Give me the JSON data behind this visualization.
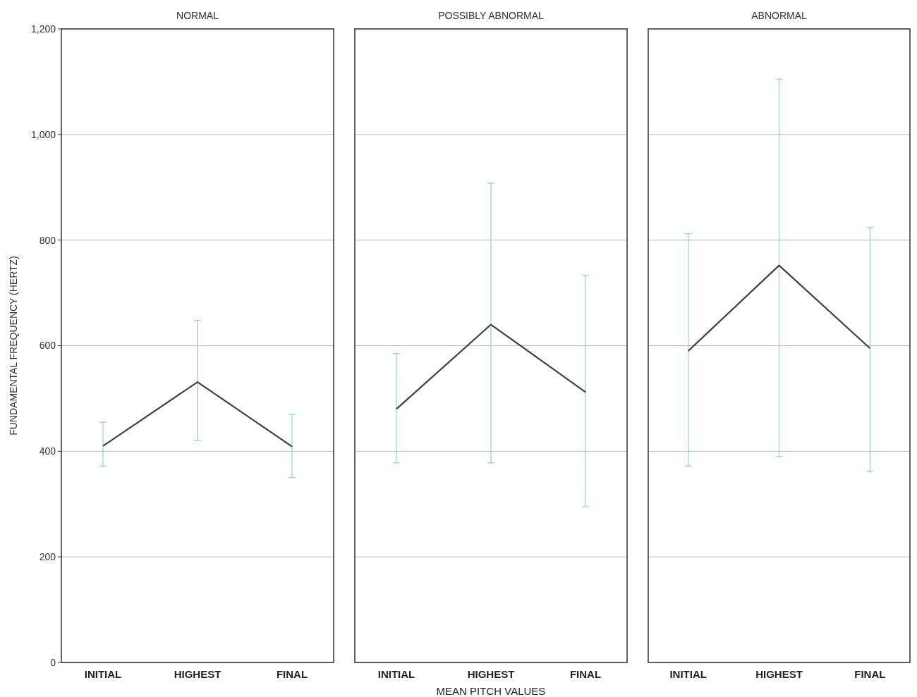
{
  "chart_data": [
    {
      "type": "line",
      "title": "NORMAL",
      "ylabel": "FUNDAMENTAL FREQUENCY (HERTZ)",
      "categories": [
        "INITIAL",
        "HIGHEST",
        "FINAL"
      ],
      "series": [
        {
          "color": "#404040",
          "values": [
            410,
            531,
            409
          ],
          "errors": [
            [
              372,
              455
            ],
            [
              421,
              648
            ],
            [
              350,
              470
            ]
          ]
        }
      ],
      "ylim": [
        0,
        1200
      ],
      "yticks": [
        0,
        200,
        400,
        600,
        800,
        {
          "value": 1000,
          "label": "1,000"
        },
        {
          "value": 1200,
          "label": "1,200"
        }
      ],
      "grid": "y"
    },
    {
      "type": "line",
      "title": "POSSIBLY ABNORMAL",
      "xlabel": "MEAN PITCH VALUES",
      "categories": [
        "INITIAL",
        "HIGHEST",
        "FINAL"
      ],
      "series": [
        {
          "color": "#404040",
          "values": [
            480,
            640,
            512
          ],
          "errors": [
            [
              378,
              585
            ],
            [
              378,
              908
            ],
            [
              295,
              733
            ]
          ]
        }
      ],
      "ylim": [
        0,
        1200
      ],
      "yticks": [
        0,
        200,
        400,
        600,
        800,
        1000,
        1200
      ],
      "grid": "y",
      "tick_labels": "x"
    },
    {
      "type": "line",
      "title": "ABNORMAL",
      "categories": [
        "INITIAL",
        "HIGHEST",
        "FINAL"
      ],
      "series": [
        {
          "color": "#404040",
          "values": [
            590,
            752,
            595
          ],
          "errors": [
            [
              372,
              812
            ],
            [
              390,
              1105
            ],
            [
              362,
              824
            ]
          ]
        }
      ],
      "ylim": [
        0,
        1200
      ],
      "yticks": [
        0,
        200,
        400,
        600,
        800,
        1000,
        1200
      ],
      "grid": "y",
      "tick_labels": "x"
    }
  ]
}
